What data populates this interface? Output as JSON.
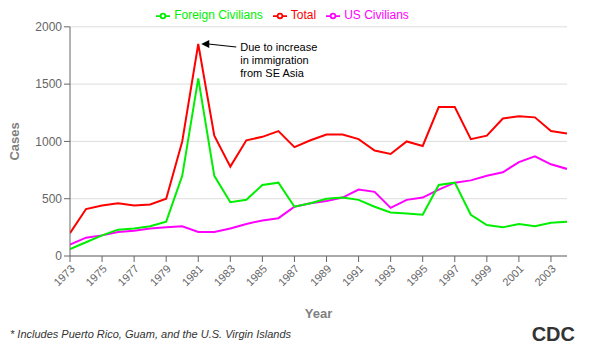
{
  "chart_data": {
    "type": "line",
    "x_label": "Year",
    "y_label": "Cases",
    "x": [
      1973,
      1974,
      1975,
      1976,
      1977,
      1978,
      1979,
      1980,
      1981,
      1982,
      1983,
      1984,
      1985,
      1986,
      1987,
      1988,
      1989,
      1990,
      1991,
      1992,
      1993,
      1994,
      1995,
      1996,
      1997,
      1998,
      1999,
      2000,
      2001,
      2002,
      2003,
      2004
    ],
    "series": [
      {
        "name": "US Civilians",
        "color": "#ff00ff",
        "values": [
          100,
          160,
          180,
          210,
          220,
          240,
          250,
          260,
          210,
          210,
          240,
          280,
          310,
          330,
          430,
          460,
          480,
          510,
          580,
          560,
          420,
          490,
          510,
          580,
          640,
          660,
          700,
          730,
          820,
          870,
          800,
          760
        ]
      },
      {
        "name": "Foreign Civilians",
        "color": "#00ee00",
        "values": [
          60,
          120,
          180,
          230,
          240,
          260,
          300,
          700,
          1550,
          700,
          470,
          490,
          620,
          640,
          430,
          460,
          500,
          510,
          490,
          430,
          380,
          370,
          360,
          620,
          640,
          360,
          270,
          250,
          280,
          260,
          290,
          300
        ]
      },
      {
        "name": "Total",
        "color": "#ff0000",
        "values": [
          200,
          410,
          440,
          460,
          440,
          450,
          500,
          1000,
          1850,
          1050,
          780,
          1010,
          1040,
          1090,
          950,
          1010,
          1060,
          1060,
          1020,
          920,
          890,
          1000,
          960,
          1300,
          1300,
          1020,
          1050,
          1200,
          1220,
          1210,
          1090,
          1070
        ]
      }
    ],
    "xlim": [
      1973,
      2004
    ],
    "xticks": [
      1973,
      1975,
      1977,
      1979,
      1981,
      1983,
      1985,
      1987,
      1989,
      1991,
      1993,
      1995,
      1997,
      1999,
      2001,
      2003
    ],
    "ylim": [
      0,
      2000
    ],
    "yticks": [
      0,
      500,
      1000,
      1500,
      2000
    ],
    "grid": "y",
    "legend": "top",
    "annotations": [
      {
        "text": "Due to increase\nin immigration\nfrom SE Asia",
        "x": 1981,
        "y": 1850
      },
      {
        "text": "* Includes Puerto Rico, Guam, and the U.S. Virgin Islands"
      },
      {
        "text": "CDC"
      }
    ]
  }
}
